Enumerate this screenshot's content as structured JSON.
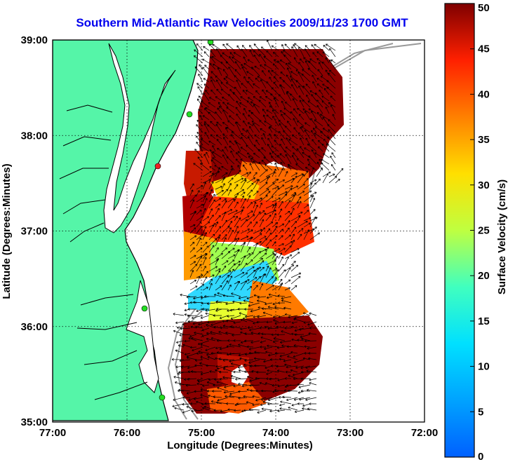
{
  "chart_data": {
    "type": "heatmap",
    "title": "Southern Mid-Atlantic Raw Velocities 2009/11/23 1700 GMT",
    "xlabel": "Longitude (Degrees:Minutes)",
    "ylabel": "Latitude (Degrees:Minutes)",
    "xlim": [
      -77,
      -72
    ],
    "ylim": [
      35,
      39
    ],
    "x_ticks": [
      "77:00",
      "76:00",
      "75:00",
      "74:00",
      "73:00",
      "72:00"
    ],
    "y_ticks": [
      "35:00",
      "36:00",
      "37:00",
      "38:00",
      "39:00"
    ],
    "grid": true,
    "colorbar": {
      "label": "Surface Velocity (cm/s)",
      "range": [
        0,
        50
      ],
      "ticks": [
        "0",
        "5",
        "10",
        "15",
        "20",
        "25",
        "30",
        "35",
        "40",
        "45",
        "50"
      ]
    },
    "colors": {
      "land": "#55f5a8",
      "water": "#ffffff",
      "coast": "#000000",
      "bathymetry": "#999999",
      "station_active": "#22dd22",
      "station_inactive": "#ee2222",
      "vector": "#000000"
    }
  }
}
